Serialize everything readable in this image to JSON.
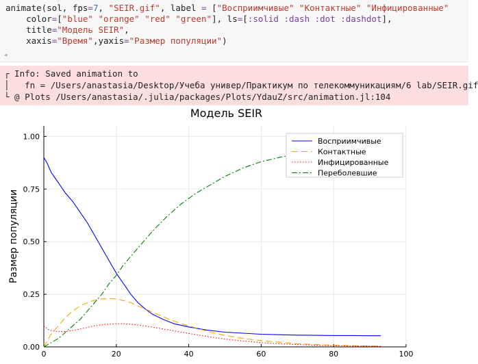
{
  "code": {
    "line1": [
      {
        "t": "animate(sol, fps",
        "c": "c-fn"
      },
      {
        "t": "=",
        "c": "c-op"
      },
      {
        "t": "7",
        "c": "c-num"
      },
      {
        "t": ", ",
        "c": "c-fn"
      },
      {
        "t": "\"SEIR.gif\"",
        "c": "c-str"
      },
      {
        "t": ", label ",
        "c": "c-fn"
      },
      {
        "t": "=",
        "c": "c-op"
      },
      {
        "t": " [",
        "c": "c-fn"
      },
      {
        "t": "\"Восприимчивые\"",
        "c": "c-str"
      },
      {
        "t": " ",
        "c": "c-fn"
      },
      {
        "t": "\"Контактные\"",
        "c": "c-str"
      },
      {
        "t": " ",
        "c": "c-fn"
      },
      {
        "t": "\"Инфицированные\"",
        "c": "c-str"
      }
    ],
    "line2": [
      {
        "t": "    color",
        "c": "c-fn"
      },
      {
        "t": "=",
        "c": "c-op"
      },
      {
        "t": "[",
        "c": "c-fn"
      },
      {
        "t": "\"blue\"",
        "c": "c-str"
      },
      {
        "t": " ",
        "c": "c-fn"
      },
      {
        "t": "\"orange\"",
        "c": "c-str"
      },
      {
        "t": " ",
        "c": "c-fn"
      },
      {
        "t": "\"red\"",
        "c": "c-str"
      },
      {
        "t": " ",
        "c": "c-fn"
      },
      {
        "t": "\"green\"",
        "c": "c-str"
      },
      {
        "t": "], ls",
        "c": "c-fn"
      },
      {
        "t": "=",
        "c": "c-op"
      },
      {
        "t": "[",
        "c": "c-fn"
      },
      {
        "t": ":solid :dash :dot :dashdot",
        "c": "c-sym"
      },
      {
        "t": "],",
        "c": "c-fn"
      }
    ],
    "line3": [
      {
        "t": "    title",
        "c": "c-fn"
      },
      {
        "t": "=",
        "c": "c-op"
      },
      {
        "t": "\"Модель SEIR\"",
        "c": "c-str"
      },
      {
        "t": ",",
        "c": "c-fn"
      }
    ],
    "line4": [
      {
        "t": "    xaxis",
        "c": "c-fn"
      },
      {
        "t": "=",
        "c": "c-op"
      },
      {
        "t": "\"Время\"",
        "c": "c-str"
      },
      {
        "t": ",yaxis",
        "c": "c-fn"
      },
      {
        "t": "=",
        "c": "c-op"
      },
      {
        "t": "\"Размер популяции\"",
        "c": "c-str"
      },
      {
        "t": ")",
        "c": "c-fn"
      }
    ]
  },
  "scroll_arrow": "◂",
  "info": {
    "line1": "┌ Info: Saved animation to",
    "line2": "│   fn = /Users/anastasia/Desktop/Учеба универ/Практикум по телекоммуникациям/6 lab/SEIR.gif",
    "line3": "└ @ Plots /Users/anastasia/.julia/packages/Plots/YdauZ/src/animation.jl:104"
  },
  "chart_data": {
    "type": "line",
    "title": "Модель SEIR",
    "xlabel": "",
    "ylabel": "Размер популяции",
    "xlim": [
      0,
      100
    ],
    "ylim": [
      0,
      1.05
    ],
    "xticks": [
      0,
      20,
      40,
      60,
      80,
      100
    ],
    "yticks": [
      0.0,
      0.25,
      0.5,
      0.75,
      1.0
    ],
    "xtick_labels": [
      "0",
      "20",
      "40",
      "60",
      "80",
      "100"
    ],
    "ytick_labels": [
      "0.00",
      "0.25",
      "0.50",
      "0.75",
      "1.00"
    ],
    "grid": true,
    "legend": "top-right",
    "series": [
      {
        "name": "Восприимчивые",
        "color": "#0000ff",
        "dash": "",
        "x": [
          0,
          1,
          2,
          4,
          6,
          8,
          10,
          12,
          14,
          16,
          18,
          20,
          22,
          24,
          26,
          28,
          30,
          33,
          36,
          40,
          45,
          50,
          55,
          60,
          65,
          70,
          75,
          80,
          85,
          90,
          93
        ],
        "y": [
          0.9,
          0.87,
          0.83,
          0.78,
          0.73,
          0.69,
          0.64,
          0.59,
          0.53,
          0.47,
          0.41,
          0.35,
          0.3,
          0.25,
          0.21,
          0.18,
          0.155,
          0.13,
          0.11,
          0.095,
          0.08,
          0.07,
          0.065,
          0.06,
          0.058,
          0.056,
          0.055,
          0.054,
          0.054,
          0.053,
          0.053
        ]
      },
      {
        "name": "Контактные",
        "color": "#ffa500",
        "dash": "9,5",
        "x": [
          0,
          2,
          4,
          6,
          8,
          10,
          12,
          14,
          16,
          18,
          20,
          22,
          24,
          26,
          28,
          30,
          34,
          38,
          42,
          46,
          50,
          55,
          60,
          65,
          70,
          75,
          80,
          85,
          90,
          93
        ],
        "y": [
          0.0,
          0.06,
          0.1,
          0.14,
          0.17,
          0.195,
          0.21,
          0.222,
          0.228,
          0.23,
          0.228,
          0.22,
          0.21,
          0.195,
          0.18,
          0.165,
          0.135,
          0.11,
          0.09,
          0.07,
          0.055,
          0.04,
          0.03,
          0.022,
          0.015,
          0.011,
          0.008,
          0.006,
          0.004,
          0.004
        ]
      },
      {
        "name": "Инфицированные",
        "color": "#ff0000",
        "dash": "1.5,2.5",
        "x": [
          0,
          1,
          2,
          4,
          6,
          8,
          10,
          12,
          14,
          16,
          18,
          20,
          22,
          24,
          26,
          28,
          30,
          34,
          38,
          42,
          46,
          50,
          55,
          60,
          65,
          70,
          75,
          80,
          85,
          90,
          93
        ],
        "y": [
          0.1,
          0.085,
          0.077,
          0.072,
          0.073,
          0.078,
          0.085,
          0.093,
          0.1,
          0.105,
          0.108,
          0.11,
          0.11,
          0.108,
          0.104,
          0.099,
          0.094,
          0.082,
          0.07,
          0.058,
          0.047,
          0.037,
          0.028,
          0.02,
          0.015,
          0.011,
          0.008,
          0.006,
          0.004,
          0.003,
          0.003
        ]
      },
      {
        "name": "Переболевшие",
        "color": "#008000",
        "dash": "8,3,2,3",
        "x": [
          0,
          2,
          4,
          6,
          8,
          10,
          12,
          14,
          16,
          18,
          20,
          22,
          24,
          26,
          28,
          30,
          34,
          38,
          42,
          46,
          50,
          55,
          60,
          65,
          68
        ],
        "y": [
          0.0,
          0.02,
          0.04,
          0.07,
          0.1,
          0.13,
          0.17,
          0.21,
          0.25,
          0.3,
          0.34,
          0.39,
          0.43,
          0.47,
          0.51,
          0.55,
          0.62,
          0.68,
          0.73,
          0.77,
          0.81,
          0.85,
          0.88,
          0.9,
          0.91
        ]
      }
    ]
  }
}
